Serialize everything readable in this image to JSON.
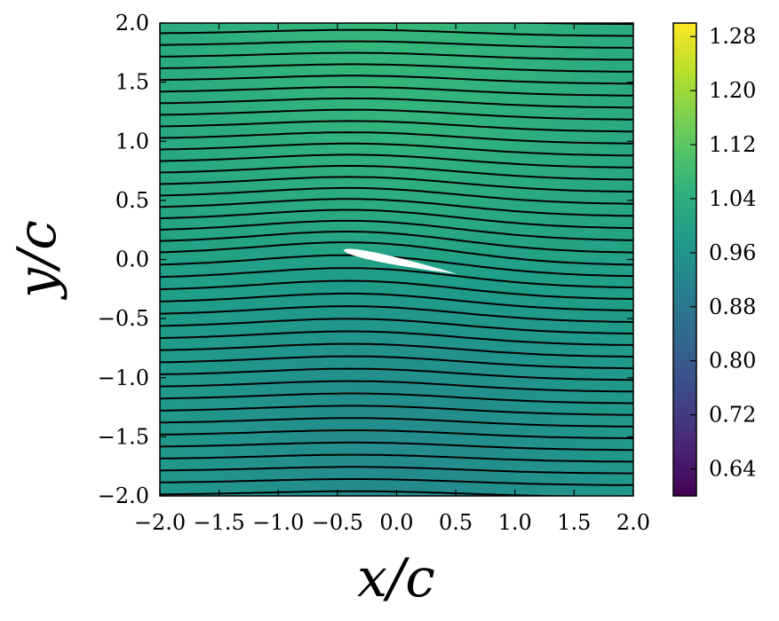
{
  "chart_data": {
    "type": "heatmap",
    "title": "",
    "xlabel": "x/c",
    "ylabel": "y/c",
    "xlim": [
      -2.0,
      2.0
    ],
    "ylim": [
      -2.0,
      2.0
    ],
    "x_ticks": [
      -2.0,
      -1.5,
      -1.0,
      -0.5,
      0.0,
      0.5,
      1.0,
      1.5,
      2.0
    ],
    "x_tick_labels": [
      "−2.0",
      "−1.5",
      "−1.0",
      "−0.5",
      "0.0",
      "0.5",
      "1.0",
      "1.5",
      "2.0"
    ],
    "y_ticks": [
      -2.0,
      -1.5,
      -1.0,
      -0.5,
      0.0,
      0.5,
      1.0,
      1.5,
      2.0
    ],
    "y_tick_labels": [
      "−2.0",
      "−1.5",
      "−1.0",
      "−0.5",
      "0.0",
      "0.5",
      "1.0",
      "1.5",
      "2.0"
    ],
    "colorbar": {
      "colormap": "viridis",
      "range": [
        0.6,
        1.3
      ],
      "ticks": [
        0.64,
        0.72,
        0.8,
        0.88,
        0.96,
        1.04,
        1.12,
        1.2,
        1.28
      ],
      "tick_labels": [
        "0.64",
        "0.72",
        "0.80",
        "0.88",
        "0.96",
        "1.04",
        "1.12",
        "1.20",
        "1.28"
      ]
    },
    "field": {
      "description_value_at_top": 1.04,
      "value_far_field": 1.0,
      "value_min_below": 0.92,
      "value_max_above": 1.06
    },
    "streamlines": {
      "count": 41,
      "y_start": -2.0,
      "y_end": 2.0,
      "color": "#000000"
    },
    "airfoil": {
      "leading_edge": [
        -0.45,
        0.08
      ],
      "trailing_edge": [
        0.5,
        -0.12
      ],
      "color": "#ffffff"
    },
    "grid": false
  }
}
